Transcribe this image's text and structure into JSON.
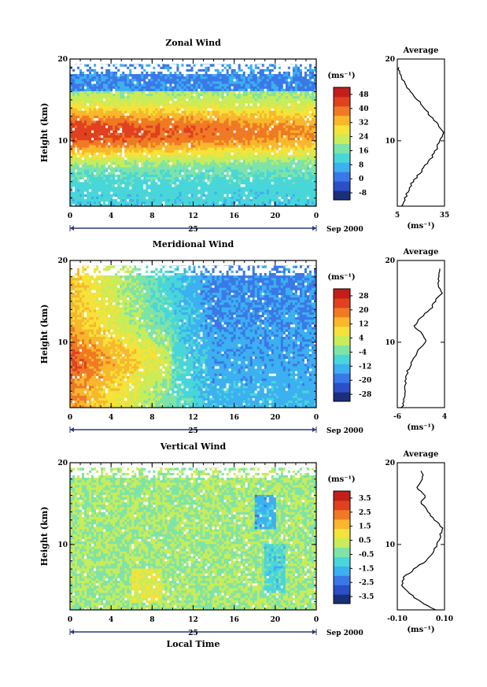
{
  "colors": {
    "scale": [
      "#1a2f7a",
      "#2a4fc6",
      "#3a78e8",
      "#3cb0f0",
      "#49d6d8",
      "#7fe3a8",
      "#c8ec5a",
      "#f5e23a",
      "#f8b72c",
      "#f07a24",
      "#e0411f",
      "#c41e1a"
    ]
  },
  "chart_data": [
    {
      "type": "heatmap",
      "title": "Zonal Wind",
      "xlabel": "",
      "ylabel": "Height (km)",
      "x_ticks": [
        "0",
        "4",
        "8",
        "12",
        "16",
        "20",
        "0"
      ],
      "y_ticks": [
        "10",
        "20"
      ],
      "date_axis": {
        "label": "25",
        "note": "Sep 2000"
      },
      "ylim": [
        2,
        20
      ],
      "colorbar": {
        "unit": "(ms⁻¹)",
        "ticks": [
          "48",
          "40",
          "32",
          "24",
          "16",
          "8",
          "0",
          "-8"
        ],
        "range": [
          -8,
          52
        ]
      },
      "profile": {
        "title": "Average",
        "xlim": [
          5,
          35
        ],
        "x_ticks": [
          "5",
          "35"
        ],
        "y_ticks": [
          "10",
          "20"
        ],
        "xlabel": "(ms⁻¹)",
        "heights": [
          2,
          3,
          4,
          5,
          6,
          7,
          8,
          9,
          10,
          11,
          12,
          13,
          14,
          15,
          16,
          17,
          18,
          19
        ],
        "values": [
          8,
          10,
          12,
          15,
          19,
          23,
          27,
          30,
          32,
          35,
          31,
          26,
          22,
          18,
          13,
          10,
          7,
          6
        ]
      }
    },
    {
      "type": "heatmap",
      "title": "Meridional Wind",
      "xlabel": "",
      "ylabel": "Height (km)",
      "x_ticks": [
        "0",
        "4",
        "8",
        "12",
        "16",
        "20",
        "0"
      ],
      "y_ticks": [
        "10",
        "20"
      ],
      "date_axis": {
        "label": "25",
        "note": "Sep 2000"
      },
      "ylim": [
        2,
        20
      ],
      "colorbar": {
        "unit": "(ms⁻¹)",
        "ticks": [
          "28",
          "20",
          "12",
          "4",
          "-4",
          "-12",
          "-20",
          "-28"
        ],
        "range": [
          -32,
          32
        ]
      },
      "profile": {
        "title": "Average",
        "xlim": [
          -6,
          4
        ],
        "x_ticks": [
          "-6",
          "4"
        ],
        "y_ticks": [
          "10",
          "20"
        ],
        "xlabel": "(ms⁻¹)",
        "heights": [
          2,
          3,
          4,
          5,
          6,
          7,
          8,
          9,
          10,
          11,
          12,
          13,
          14,
          15,
          16,
          17,
          18,
          19
        ],
        "values": [
          -5,
          -4.6,
          -4.5,
          -4.2,
          -4,
          -3.5,
          -2.5,
          -1.5,
          0,
          -0.5,
          -2.5,
          -1,
          1,
          2,
          3.5,
          2.5,
          3,
          3
        ]
      }
    },
    {
      "type": "heatmap",
      "title": "Vertical Wind",
      "xlabel": "Local Time",
      "ylabel": "Height (km)",
      "x_ticks": [
        "0",
        "4",
        "8",
        "12",
        "16",
        "20",
        "0"
      ],
      "y_ticks": [
        "10",
        "20"
      ],
      "date_axis": {
        "label": "25",
        "note": "Sep 2000"
      },
      "ylim": [
        2,
        20
      ],
      "colorbar": {
        "unit": "(ms⁻¹)",
        "ticks": [
          "3.5",
          "2.5",
          "1.5",
          "0.5",
          "-0.5",
          "-1.5",
          "-2.5",
          "-3.5"
        ],
        "range": [
          -4,
          4
        ]
      },
      "profile": {
        "title": "Average",
        "xlim": [
          -0.1,
          0.1
        ],
        "x_ticks": [
          "-0.10",
          "0.10"
        ],
        "y_ticks": [
          "10",
          "20"
        ],
        "xlabel": "(ms⁻¹)",
        "heights": [
          2,
          3,
          4,
          5,
          6,
          7,
          8,
          9,
          10,
          11,
          12,
          13,
          14,
          15,
          16,
          17,
          18,
          19
        ],
        "values": [
          0.06,
          0.0,
          -0.05,
          -0.08,
          -0.07,
          -0.03,
          0.02,
          0.05,
          0.07,
          0.08,
          0.09,
          0.06,
          0.03,
          0.0,
          0.02,
          -0.02,
          0.01,
          0.0
        ]
      }
    }
  ]
}
